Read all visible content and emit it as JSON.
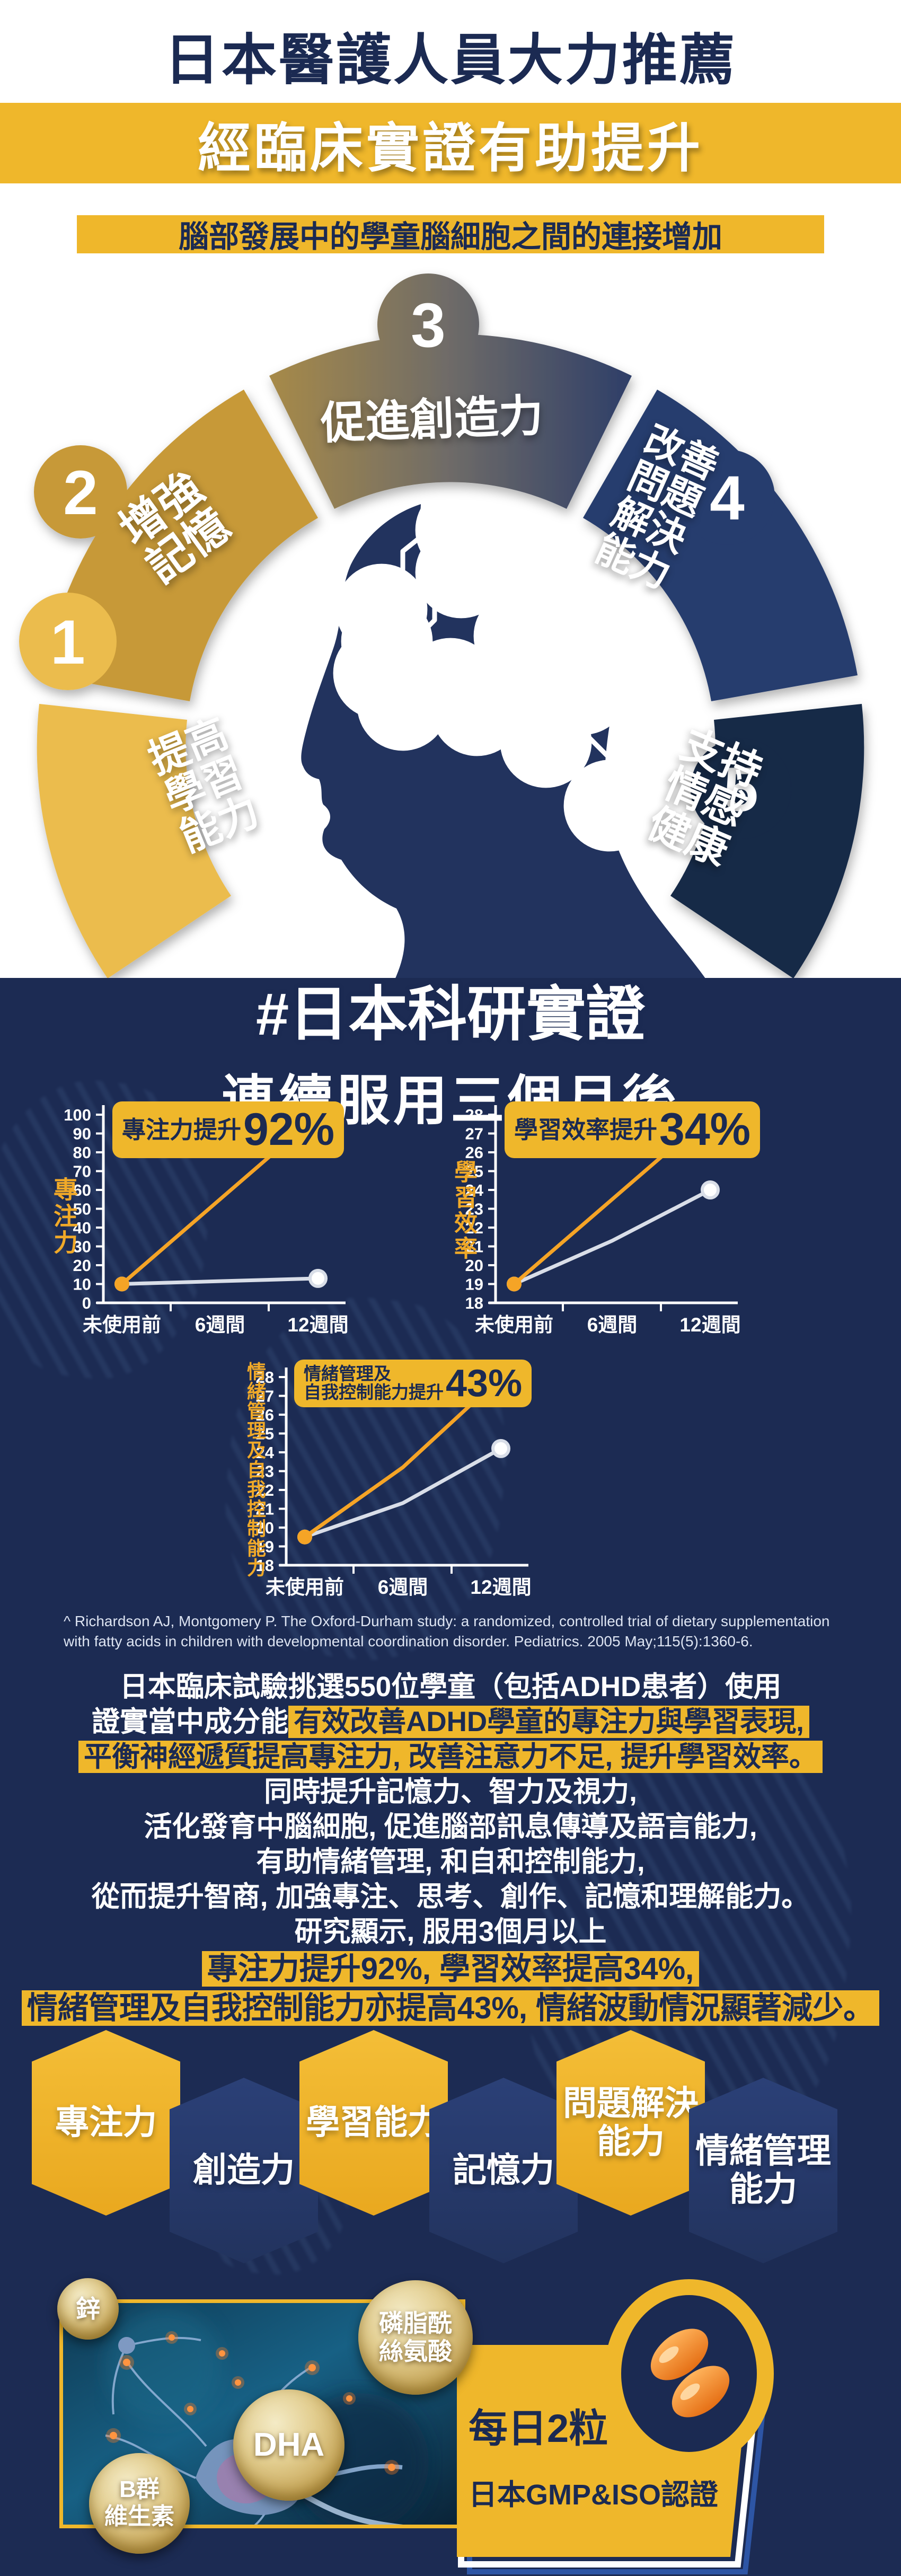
{
  "header": {
    "title": "日本醫護人員大力推薦",
    "banner1": "經臨床實證有助提升",
    "banner2": "腦部發展中的學童腦細胞之間的連接增加"
  },
  "arc": {
    "segments": [
      {
        "number": "1",
        "lines": [
          "提高",
          "學習",
          "能力"
        ]
      },
      {
        "number": "2",
        "lines": [
          "增強",
          "記憶"
        ]
      },
      {
        "number": "3",
        "lines": [
          "促進創造力"
        ]
      },
      {
        "number": "4",
        "lines": [
          "改善",
          "問題",
          "解決",
          "能力"
        ]
      },
      {
        "number": "5",
        "lines": [
          "支持",
          "情感",
          "健康"
        ]
      }
    ]
  },
  "science": {
    "hashtag": "#日本科研實證",
    "subtitle": "連續服用三個月後",
    "footnote_line1": "^ Richardson AJ, Montgomery P. The Oxford-Durham study: a randomized, controlled trial of dietary supplementation",
    "footnote_line2": "with fatty acids in children with developmental coordination disorder. Pediatrics. 2005 May;115(5):1360-6."
  },
  "chart_data": [
    {
      "type": "line",
      "badge_line1": "",
      "badge_line2": "專注力提升",
      "badge_percent": "92%",
      "ylabel": "專注力",
      "categories": [
        "未使用前",
        "6週間",
        "12週間"
      ],
      "ylim": [
        0,
        100
      ],
      "yticks": [
        0,
        10,
        20,
        30,
        40,
        50,
        60,
        70,
        80,
        90,
        100
      ],
      "series": [
        {
          "color": "#D9DEE8",
          "values": [
            10,
            11.5,
            13
          ]
        },
        {
          "color": "#F5A426",
          "values": [
            10,
            55,
            100
          ]
        }
      ]
    },
    {
      "type": "line",
      "badge_line1": "",
      "badge_line2": "學習效率提升",
      "badge_percent": "34%",
      "ylabel": "學習效率",
      "categories": [
        "未使用前",
        "6週間",
        "12週間"
      ],
      "ylim": [
        18,
        28
      ],
      "yticks": [
        18,
        19,
        20,
        21,
        22,
        23,
        24,
        25,
        26,
        27,
        28
      ],
      "series": [
        {
          "color": "#D9DEE8",
          "values": [
            19,
            21.3,
            24
          ]
        },
        {
          "color": "#F5A426",
          "values": [
            19,
            23.5,
            28
          ]
        }
      ]
    },
    {
      "type": "line",
      "badge_line1": "情緒管理及",
      "badge_line2": "自我控制能力提升",
      "badge_percent": "43%",
      "ylabel": "情緒管理及自我控制能力",
      "categories": [
        "未使用前",
        "6週間",
        "12週間"
      ],
      "ylim": [
        18,
        28
      ],
      "yticks": [
        18,
        19,
        20,
        21,
        22,
        23,
        24,
        25,
        26,
        27,
        28
      ],
      "series": [
        {
          "color": "#D9DEE8",
          "values": [
            19.5,
            21.3,
            24.2
          ]
        },
        {
          "color": "#F5A426",
          "values": [
            19.5,
            23.2,
            28
          ]
        }
      ]
    }
  ],
  "paragraph": {
    "l1": "日本臨床試驗挑選550位學童（包括ADHD患者）使用",
    "l2_pre": "證實當中成分能",
    "l2_hl": "有效改善ADHD學童的專注力與學習表現,",
    "l3_hl": "平衡神經遞質提高專注力, 改善注意力不足, 提升學習效率。",
    "l4": "同時提升記憶力、智力及視力,",
    "l5": "活化發育中腦細胞, 促進腦部訊息傳導及語言能力,",
    "l6": "有助情緒管理, 和自和控制能力,",
    "l7": "從而提升智商, 加強專注、思考、創作、記憶和理解能力。",
    "l8": "研究顯示, 服用3個月以上",
    "l9_hl": "專注力提升92%, 學習效率提高34%,",
    "l10_hl": "情緒管理及自我控制能力亦提高43%, 情緒波動情況顯著減少。"
  },
  "hexagons": [
    {
      "lines": [
        "專注力"
      ]
    },
    {
      "lines": [
        "創造力"
      ]
    },
    {
      "lines": [
        "學習能力"
      ]
    },
    {
      "lines": [
        "記憶力"
      ]
    },
    {
      "lines": [
        "問題解決",
        "能力"
      ]
    },
    {
      "lines": [
        "情緒管理",
        "能力"
      ]
    }
  ],
  "ingredients": [
    {
      "lines": [
        "鋅"
      ]
    },
    {
      "lines": [
        "磷脂酰",
        "絲氨酸"
      ]
    },
    {
      "lines": [
        "DHA"
      ]
    },
    {
      "lines": [
        "B群",
        "維生素"
      ]
    }
  ],
  "product": {
    "daily": "每日2粒",
    "cert": "日本GMP&ISO認證"
  },
  "colors": {
    "navy": "#1C2B53",
    "yellow": "#EFB72B",
    "orange_line": "#F5A426",
    "white_line": "#D9DEE8",
    "gold_segment": "#C79937"
  }
}
